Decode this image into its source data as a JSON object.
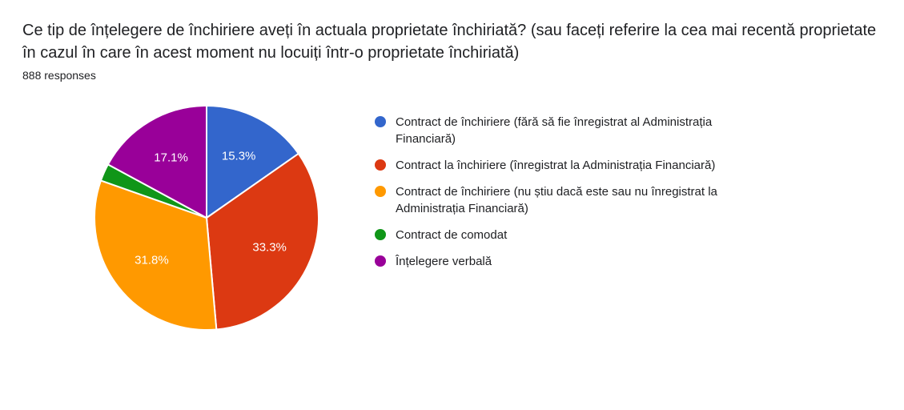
{
  "header": {
    "title": "Ce tip de înțelegere de închiriere aveți în actuala proprietate închiriată? (sau faceți referire la cea mai recentă proprietate în cazul în care în acest moment nu locuiți într-o proprietate închiriată)",
    "subtitle": "888 responses"
  },
  "chart": {
    "type": "pie",
    "background_color": "#ffffff",
    "stroke_color": "#ffffff",
    "stroke_width": 2,
    "radius": 140,
    "label_fontsize": 15,
    "label_color": "#ffffff",
    "legend_fontsize": 15,
    "legend_swatch_size": 14,
    "min_label_pct": 3.0,
    "start_angle_deg": 90,
    "slices": [
      {
        "label": "Contract de închiriere (fără să fie înregistrat al Administrația Financiară)",
        "value_pct": 15.3,
        "color": "#3366cc",
        "display": "15.3%"
      },
      {
        "label": "Contract la închiriere (înregistrat la Administrația Financiară)",
        "value_pct": 33.3,
        "color": "#dc3912",
        "display": "33.3%"
      },
      {
        "label": "Contract de închiriere (nu știu dacă este sau nu înregistrat la Administrația Financiară)",
        "value_pct": 31.8,
        "color": "#ff9900",
        "display": "31.8%"
      },
      {
        "label": "Contract de comodat",
        "value_pct": 2.5,
        "color": "#109618",
        "display": "2.5%"
      },
      {
        "label": "Înțelegere verbală",
        "value_pct": 17.1,
        "color": "#990099",
        "display": "17.1%"
      }
    ]
  }
}
